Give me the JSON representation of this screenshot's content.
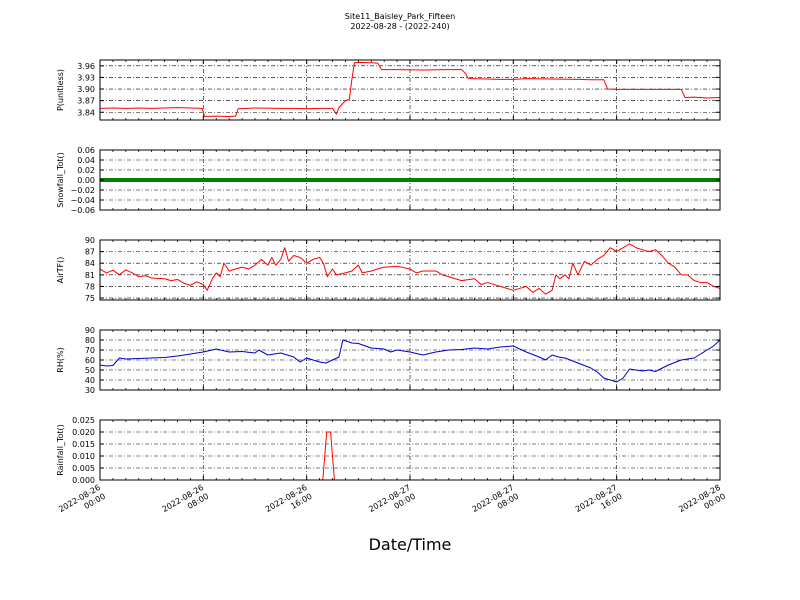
{
  "chart_data": {
    "type": "line",
    "title": "Site11_Baisley_Park_Fifteen",
    "subtitle": "2022-08-28 - (2022-240)",
    "xlabel": "Date/Time",
    "grid": true,
    "x_ticks": [
      {
        "line1": "2022-08-26",
        "line2": "00:00"
      },
      {
        "line1": "2022-08-26",
        "line2": "08:00"
      },
      {
        "line1": "2022-08-26",
        "line2": "16:00"
      },
      {
        "line1": "2022-08-27",
        "line2": "00:00"
      },
      {
        "line1": "2022-08-27",
        "line2": "08:00"
      },
      {
        "line1": "2022-08-27",
        "line2": "16:00"
      },
      {
        "line1": "2022-08-28",
        "line2": "00:00"
      }
    ],
    "xlim_hours": [
      0,
      48
    ],
    "panels": [
      {
        "ylabel": "P(unitless)",
        "ylim": [
          3.82,
          3.975
        ],
        "yticks": [
          "3.84",
          "3.87",
          "3.90",
          "3.93",
          "3.96"
        ],
        "ytick_values": [
          3.84,
          3.87,
          3.9,
          3.93,
          3.96
        ],
        "color": "#ff0000",
        "points": [
          [
            0,
            3.85
          ],
          [
            1,
            3.851
          ],
          [
            2,
            3.85
          ],
          [
            3,
            3.851
          ],
          [
            4,
            3.85
          ],
          [
            5,
            3.851
          ],
          [
            6,
            3.852
          ],
          [
            7,
            3.851
          ],
          [
            7.9,
            3.85
          ],
          [
            8.1,
            3.829
          ],
          [
            9,
            3.83
          ],
          [
            10,
            3.829
          ],
          [
            10.5,
            3.83
          ],
          [
            10.7,
            3.849
          ],
          [
            12,
            3.851
          ],
          [
            14,
            3.85
          ],
          [
            15,
            3.85
          ],
          [
            16,
            3.849
          ],
          [
            17,
            3.85
          ],
          [
            18,
            3.85
          ],
          [
            18.3,
            3.835
          ],
          [
            18.5,
            3.852
          ],
          [
            19,
            3.87
          ],
          [
            19.3,
            3.873
          ],
          [
            19.5,
            3.925
          ],
          [
            19.7,
            3.968
          ],
          [
            20,
            3.969
          ],
          [
            21,
            3.968
          ],
          [
            21.5,
            3.967
          ],
          [
            21.8,
            3.95
          ],
          [
            23,
            3.95
          ],
          [
            25,
            3.949
          ],
          [
            27,
            3.95
          ],
          [
            28,
            3.95
          ],
          [
            28.3,
            3.94
          ],
          [
            28.5,
            3.927
          ],
          [
            30,
            3.926
          ],
          [
            31,
            3.925
          ],
          [
            32,
            3.925
          ],
          [
            33,
            3.927
          ],
          [
            35,
            3.926
          ],
          [
            37,
            3.925
          ],
          [
            38,
            3.924
          ],
          [
            39,
            3.924
          ],
          [
            39.3,
            3.9
          ],
          [
            40,
            3.899
          ],
          [
            42,
            3.899
          ],
          [
            44,
            3.899
          ],
          [
            45,
            3.899
          ],
          [
            45.3,
            3.878
          ],
          [
            46,
            3.879
          ],
          [
            47,
            3.877
          ],
          [
            48,
            3.878
          ]
        ]
      },
      {
        "ylabel": "Snowfall_Tot()",
        "ylim": [
          -0.06,
          0.06
        ],
        "yticks": [
          "−0.06",
          "−0.04",
          "−0.02",
          "0.00",
          "0.02",
          "0.04",
          "0.06"
        ],
        "ytick_values": [
          -0.06,
          -0.04,
          -0.02,
          0.0,
          0.02,
          0.04,
          0.06
        ],
        "color": "#008000",
        "thick": true,
        "points": [
          [
            0,
            0
          ],
          [
            48,
            0
          ]
        ]
      },
      {
        "ylabel": "AirTF()",
        "ylim": [
          74.5,
          90
        ],
        "yticks": [
          "75",
          "78",
          "81",
          "84",
          "87",
          "90"
        ],
        "ytick_values": [
          75,
          78,
          81,
          84,
          87,
          90
        ],
        "color": "#ff0000",
        "points": [
          [
            0,
            82.5
          ],
          [
            0.5,
            81.5
          ],
          [
            1,
            82.2
          ],
          [
            1.5,
            81
          ],
          [
            2,
            82.3
          ],
          [
            2.5,
            81.5
          ],
          [
            3,
            80.5
          ],
          [
            3.5,
            80.8
          ],
          [
            4,
            80.2
          ],
          [
            5,
            80
          ],
          [
            5.5,
            79.5
          ],
          [
            6,
            79.8
          ],
          [
            6.5,
            78.8
          ],
          [
            7,
            78.3
          ],
          [
            7.5,
            79.2
          ],
          [
            8,
            78.5
          ],
          [
            8.3,
            77
          ],
          [
            8.7,
            80
          ],
          [
            9,
            81.5
          ],
          [
            9.3,
            80.5
          ],
          [
            9.6,
            84
          ],
          [
            10,
            82
          ],
          [
            10.5,
            82.5
          ],
          [
            11,
            83
          ],
          [
            11.5,
            82.5
          ],
          [
            12,
            83.5
          ],
          [
            12.5,
            85
          ],
          [
            13,
            83.5
          ],
          [
            13.3,
            85.5
          ],
          [
            13.6,
            83.5
          ],
          [
            14,
            85
          ],
          [
            14.3,
            88
          ],
          [
            14.6,
            84.5
          ],
          [
            15,
            86
          ],
          [
            15.5,
            85.5
          ],
          [
            16,
            84
          ],
          [
            16.5,
            85
          ],
          [
            17,
            85.5
          ],
          [
            17.3,
            84
          ],
          [
            17.6,
            80.5
          ],
          [
            18,
            82.5
          ],
          [
            18.3,
            81
          ],
          [
            19,
            81.5
          ],
          [
            19.5,
            82
          ],
          [
            20,
            83.5
          ],
          [
            20.3,
            81.5
          ],
          [
            21,
            82
          ],
          [
            21.5,
            82.5
          ],
          [
            22,
            83
          ],
          [
            23,
            83.2
          ],
          [
            24,
            82.5
          ],
          [
            24.5,
            81.5
          ],
          [
            25,
            82
          ],
          [
            26,
            82
          ],
          [
            26.5,
            81
          ],
          [
            27,
            80.5
          ],
          [
            27.5,
            80
          ],
          [
            28,
            79.5
          ],
          [
            29,
            80
          ],
          [
            29.5,
            78.5
          ],
          [
            30,
            79
          ],
          [
            31,
            78
          ],
          [
            31.5,
            77.5
          ],
          [
            32,
            77
          ],
          [
            33,
            78
          ],
          [
            33.5,
            76.5
          ],
          [
            34,
            77.5
          ],
          [
            34.5,
            76
          ],
          [
            35,
            77
          ],
          [
            35.3,
            81
          ],
          [
            35.6,
            80
          ],
          [
            36,
            81
          ],
          [
            36.3,
            80
          ],
          [
            36.6,
            84
          ],
          [
            37,
            81
          ],
          [
            37.5,
            84.5
          ],
          [
            38,
            83.5
          ],
          [
            38.5,
            85
          ],
          [
            39,
            86
          ],
          [
            39.5,
            88
          ],
          [
            40,
            87
          ],
          [
            40.5,
            88
          ],
          [
            41,
            89
          ],
          [
            41.5,
            88
          ],
          [
            42,
            87.5
          ],
          [
            42.5,
            87
          ],
          [
            43,
            87.5
          ],
          [
            43.5,
            86
          ],
          [
            44,
            84
          ],
          [
            44.5,
            83
          ],
          [
            45,
            81
          ],
          [
            45.5,
            81
          ],
          [
            46,
            79.5
          ],
          [
            46.5,
            79
          ],
          [
            47,
            79
          ],
          [
            47.5,
            78
          ],
          [
            48,
            77.5
          ]
        ]
      },
      {
        "ylabel": "RH(%)",
        "ylim": [
          30,
          90
        ],
        "yticks": [
          "30",
          "40",
          "50",
          "60",
          "70",
          "80",
          "90"
        ],
        "ytick_values": [
          30,
          40,
          50,
          60,
          70,
          80,
          90
        ],
        "color": "#0000cc",
        "points": [
          [
            0,
            55
          ],
          [
            0.5,
            54
          ],
          [
            1,
            54.5
          ],
          [
            1.5,
            62
          ],
          [
            2,
            61
          ],
          [
            3,
            61.5
          ],
          [
            4,
            62
          ],
          [
            5,
            62.5
          ],
          [
            6,
            64
          ],
          [
            7,
            66
          ],
          [
            8,
            68
          ],
          [
            9,
            71
          ],
          [
            10,
            68
          ],
          [
            11,
            68.5
          ],
          [
            12,
            67
          ],
          [
            12.3,
            70
          ],
          [
            13,
            65
          ],
          [
            14,
            67
          ],
          [
            15,
            63
          ],
          [
            15.5,
            58
          ],
          [
            16,
            62
          ],
          [
            17,
            58
          ],
          [
            17.5,
            57
          ],
          [
            18,
            60
          ],
          [
            18.5,
            63
          ],
          [
            18.8,
            80
          ],
          [
            19.5,
            77
          ],
          [
            20,
            76.5
          ],
          [
            21,
            72
          ],
          [
            22,
            71
          ],
          [
            22.5,
            68
          ],
          [
            23,
            70
          ],
          [
            24,
            68
          ],
          [
            25,
            65
          ],
          [
            26,
            68
          ],
          [
            27,
            70
          ],
          [
            28,
            70.5
          ],
          [
            29,
            72
          ],
          [
            30,
            71
          ],
          [
            31,
            73
          ],
          [
            32,
            74
          ],
          [
            33,
            68
          ],
          [
            34,
            63
          ],
          [
            34.5,
            60
          ],
          [
            35,
            65
          ],
          [
            35.5,
            63
          ],
          [
            36,
            62
          ],
          [
            37,
            57
          ],
          [
            38,
            52
          ],
          [
            38.5,
            48
          ],
          [
            39,
            42
          ],
          [
            39.5,
            40
          ],
          [
            40,
            38
          ],
          [
            40.5,
            42
          ],
          [
            41,
            51
          ],
          [
            42,
            49
          ],
          [
            42.5,
            50
          ],
          [
            43,
            48.5
          ],
          [
            44,
            55
          ],
          [
            45,
            60
          ],
          [
            46,
            62
          ],
          [
            46.5,
            66
          ],
          [
            47,
            70
          ],
          [
            47.5,
            74
          ],
          [
            48,
            80
          ]
        ]
      },
      {
        "ylabel": "Rainfall_Tot()",
        "ylim": [
          0,
          0.025
        ],
        "yticks": [
          "0.000",
          "0.005",
          "0.010",
          "0.015",
          "0.020",
          "0.025"
        ],
        "ytick_values": [
          0,
          0.005,
          0.01,
          0.015,
          0.02,
          0.025
        ],
        "color": "#ff0000",
        "points": [
          [
            0,
            0
          ],
          [
            17.25,
            0
          ],
          [
            17.55,
            0.02
          ],
          [
            17.85,
            0.02
          ],
          [
            18.15,
            0
          ],
          [
            48,
            0
          ]
        ]
      }
    ]
  }
}
